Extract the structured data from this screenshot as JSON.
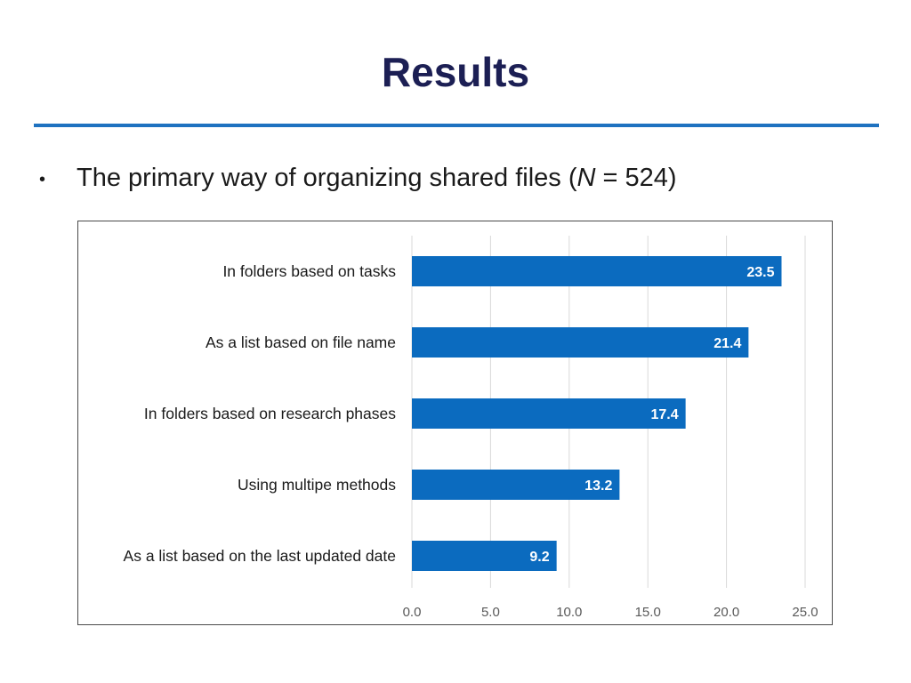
{
  "slide": {
    "title": "Results",
    "bullet": {
      "marker": "•",
      "text_before": "The primary way of organizing shared files (",
      "italic": "N",
      "text_after": " = 524)"
    }
  },
  "colors": {
    "title": "#1c1f54",
    "rule": "#1f72c0",
    "bar": "#0b6bbf",
    "bar_label": "#ffffff",
    "gridline": "#d9d9d9",
    "tick_label": "#595959",
    "category_label": "#1a1a1a"
  },
  "chart_data": {
    "type": "bar",
    "orientation": "horizontal",
    "title": "",
    "xlabel": "",
    "ylabel": "",
    "xlim": [
      0,
      25
    ],
    "grid": true,
    "legend": "none",
    "categories": [
      "In folders based on tasks",
      "As a list based on file name",
      "In folders based on research phases",
      "Using multipe methods",
      "As a list based on the last updated date"
    ],
    "values": [
      23.5,
      21.4,
      17.4,
      13.2,
      9.2
    ],
    "value_labels": [
      "23.5",
      "21.4",
      "17.4",
      "13.2",
      "9.2"
    ],
    "x_ticks": [
      0,
      5,
      10,
      15,
      20,
      25
    ],
    "x_tick_labels": [
      "0.0",
      "5.0",
      "10.0",
      "15.0",
      "20.0",
      "25.0"
    ]
  }
}
